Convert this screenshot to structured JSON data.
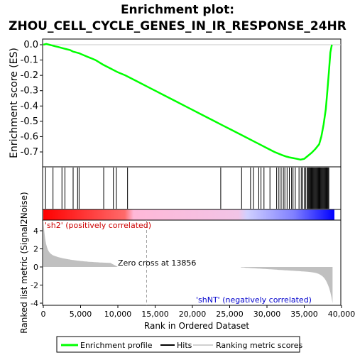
{
  "chart_data": {
    "type": "line",
    "title_line1": "Enrichment plot:",
    "title_line2": "ZHOU_CELL_CYCLE_GENES_IN_IR_RESPONSE_24HR",
    "ylabel_top": "Enrichment score (ES)",
    "ylabel_bottom": "Ranked list metric (Signal2Noise)",
    "xlabel": "Rank in Ordered Dataset",
    "es_yticks": [
      "0.0",
      "-0.1",
      "-0.2",
      "-0.3",
      "-0.4",
      "-0.5",
      "-0.6",
      "-0.7"
    ],
    "metric_yticks": [
      "4",
      "2",
      "0",
      "-2",
      "-4"
    ],
    "xticks": [
      "0",
      "5,000",
      "10,000",
      "15,000",
      "20,000",
      "25,000",
      "30,000",
      "35,000",
      "40,000"
    ],
    "xlim": [
      0,
      40000
    ],
    "es_ylim": [
      -0.8,
      0.02
    ],
    "metric_ylim": [
      -4.3,
      4.3
    ],
    "es_curve": {
      "x": [
        0,
        400,
        800,
        1200,
        1600,
        2000,
        2400,
        2800,
        3200,
        3600,
        4000,
        4400,
        4800,
        5000,
        5500,
        6000,
        6500,
        7000,
        7500,
        8000,
        9000,
        10000,
        11000,
        12000,
        13000,
        14000,
        15000,
        16000,
        17000,
        18000,
        19000,
        20000,
        21000,
        22000,
        23000,
        24000,
        25000,
        26000,
        27000,
        28000,
        29000,
        30000,
        31000,
        32000,
        32600,
        33000,
        33500,
        34000,
        34500,
        35000,
        35500,
        36000,
        36500,
        37000,
        37300,
        37600,
        37900,
        38100,
        38300,
        38500,
        38700
      ],
      "y": [
        0.0,
        0.005,
        0.0,
        -0.005,
        -0.01,
        -0.015,
        -0.02,
        -0.025,
        -0.03,
        -0.035,
        -0.045,
        -0.05,
        -0.055,
        -0.06,
        -0.07,
        -0.08,
        -0.09,
        -0.1,
        -0.115,
        -0.13,
        -0.155,
        -0.18,
        -0.2,
        -0.225,
        -0.25,
        -0.275,
        -0.3,
        -0.325,
        -0.35,
        -0.375,
        -0.4,
        -0.425,
        -0.45,
        -0.475,
        -0.5,
        -0.525,
        -0.55,
        -0.575,
        -0.6,
        -0.625,
        -0.65,
        -0.675,
        -0.7,
        -0.72,
        -0.73,
        -0.735,
        -0.74,
        -0.745,
        -0.75,
        -0.745,
        -0.725,
        -0.705,
        -0.68,
        -0.65,
        -0.6,
        -0.52,
        -0.42,
        -0.3,
        -0.18,
        -0.05,
        0.0
      ]
    },
    "hits": [
      300,
      1300,
      2500,
      2900,
      4000,
      4600,
      4800,
      8100,
      9400,
      9800,
      11300,
      23800,
      26600,
      27800,
      28200,
      28900,
      29200,
      29600,
      30400,
      31300,
      31600,
      31900,
      32200,
      32400,
      32700,
      33000,
      33300,
      33500,
      33800,
      34300,
      34600,
      34800,
      35000,
      35200,
      35400,
      35500,
      35600,
      35700,
      35800,
      35900,
      36000,
      36100,
      36200,
      36300,
      36400,
      36500,
      36600,
      36700,
      36800,
      36900,
      37000,
      37100,
      37200,
      37300,
      37400,
      37500,
      37600,
      37700,
      37800,
      37900,
      38000,
      38100,
      38200,
      38300
    ],
    "zero_cross_label": "Zero cross at 13856",
    "zero_cross": 13856,
    "pos_label": "'sh2' (positively correlated)",
    "neg_label": "'shNT' (negatively correlated)",
    "legend": {
      "placement": "bottom",
      "items": [
        "Enrichment profile",
        "Hits",
        "Ranking metric scores"
      ]
    },
    "colors": {
      "es_line": "#00ff00",
      "hit": "#000000",
      "metric": "#c0c0c0",
      "pos_band": "#ff0000",
      "neg_band": "#0000ff",
      "pos_text": "#cc0000",
      "neg_text": "#0000cc",
      "ticks_tick": "#000000"
    }
  }
}
